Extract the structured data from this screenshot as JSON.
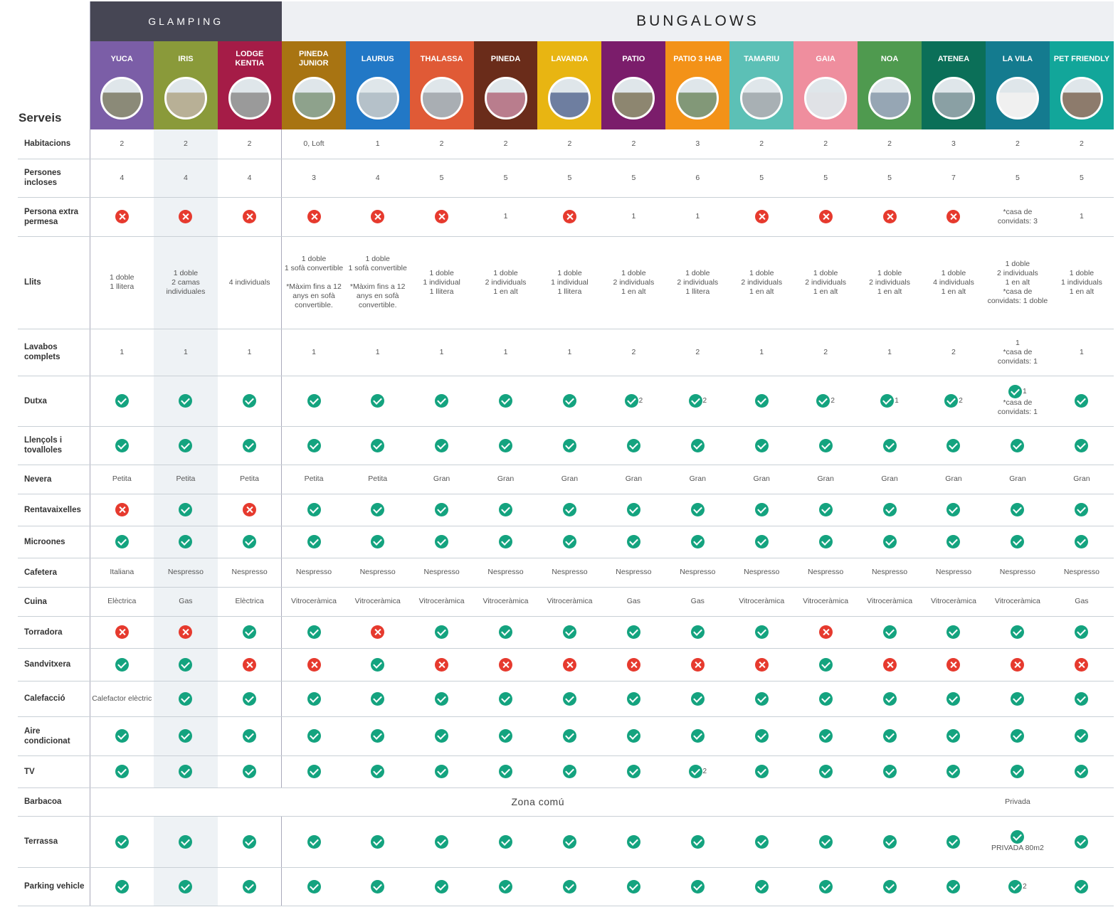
{
  "sections": {
    "glamping": "GLAMPING",
    "bungalows": "BUNGALOWS"
  },
  "corner_label": "Serveis",
  "units": [
    {
      "name": "YUCA",
      "color": "#7b5ea7",
      "photo": "#8b8a78"
    },
    {
      "name": "IRIS",
      "color": "#8a9a3a",
      "photo": "#b8b096"
    },
    {
      "name": "LODGE KENTIA",
      "color": "#a51c47",
      "photo": "#9a9a9a"
    },
    {
      "name": "PINEDA JUNIOR",
      "color": "#a87412",
      "photo": "#8ea28c"
    },
    {
      "name": "LAURUS",
      "color": "#2278c6",
      "photo": "#b5c1c9"
    },
    {
      "name": "THALASSA",
      "color": "#e05a36",
      "photo": "#a9aeb3"
    },
    {
      "name": "PINEDA",
      "color": "#6a2c1a",
      "photo": "#b97d8d"
    },
    {
      "name": "LAVANDA",
      "color": "#e8b512",
      "photo": "#6e7ea0"
    },
    {
      "name": "PATIO",
      "color": "#7b1d6b",
      "photo": "#8d8670"
    },
    {
      "name": "PATIO 3 HAB",
      "color": "#f39218",
      "photo": "#829878"
    },
    {
      "name": "TAMARIU",
      "color": "#5cc0b6",
      "photo": "#a8b0b4"
    },
    {
      "name": "GAIA",
      "color": "#ef8e9e",
      "photo": "#e0e2e6"
    },
    {
      "name": "NOA",
      "color": "#4f9a4f",
      "photo": "#96a6b4"
    },
    {
      "name": "ATENEA",
      "color": "#0b6f58",
      "photo": "#8aa0a4"
    },
    {
      "name": "LA VILA",
      "color": "#147b8f",
      "photo": "#f0f0f0"
    },
    {
      "name": "PET FRIENDLY",
      "color": "#12a69a",
      "photo": "#8d7b6c"
    }
  ],
  "rows": [
    {
      "label": "Habitacions",
      "h": 41,
      "cells": [
        "2",
        "2",
        "2",
        "0, Loft",
        "1",
        "2",
        "2",
        "2",
        "2",
        "3",
        "2",
        "2",
        "2",
        "3",
        "2",
        "2"
      ]
    },
    {
      "label": "Persones incloses",
      "h": 54,
      "cells": [
        "4",
        "4",
        "4",
        "3",
        "4",
        "5",
        "5",
        "5",
        "5",
        "6",
        "5",
        "5",
        "5",
        "7",
        "5",
        "5"
      ]
    },
    {
      "label": "Persona extra permesa",
      "h": 55,
      "cells": [
        "x",
        "x",
        "x",
        "x",
        "x",
        "x",
        "1",
        "x",
        "1",
        "1",
        "x",
        "x",
        "x",
        "x",
        "*casa de convidats: 3",
        "1"
      ]
    },
    {
      "label": "Llits",
      "h": 130,
      "cells": [
        "1 doble\n1 llitera",
        "1 doble\n2 camas individuales",
        "4 individuals",
        "1 doble\n1 sofà convertible\n\n*Màxim fins a 12 anys en sofà convertible.",
        "1 doble\n1 sofà convertible\n\n*Màxim fins a 12 anys en sofà convertible.",
        "1 doble\n1 individual\n1 llitera",
        "1 doble\n2 individuals\n1 en alt",
        "1 doble\n1 individual\n1 llitera",
        "1 doble\n2 individuals\n1 en alt",
        "1 doble\n2 individuals\n1 llitera",
        "1 doble\n2 individuals\n1 en alt",
        "1 doble\n2 individuals\n1 en alt",
        "1 doble\n2 individuals\n1 en alt",
        "1 doble\n4 individuals\n1 en alt",
        "1 doble\n2 individuals\n1 en alt\n*casa de convidats: 1 doble",
        "1 doble\n1 individuals\n1 en alt"
      ]
    },
    {
      "label": "Lavabos complets",
      "h": 66,
      "cells": [
        "1",
        "1",
        "1",
        "1",
        "1",
        "1",
        "1",
        "1",
        "2",
        "2",
        "1",
        "2",
        "1",
        "2",
        "1\n*casa de convidats: 1",
        "1"
      ]
    },
    {
      "label": "Dutxa",
      "h": 71,
      "cells": [
        "v",
        "v",
        "v",
        "v",
        "v",
        "v",
        "v",
        "v",
        "v|2",
        "v|2",
        "v",
        "v|2",
        "v|1",
        "v|2",
        "v|1\n*casa de convidats: 1",
        "v"
      ]
    },
    {
      "label": "Llençols i tovalloles",
      "h": 54,
      "cells": [
        "v",
        "v",
        "v",
        "v",
        "v",
        "v",
        "v",
        "v",
        "v",
        "v",
        "v",
        "v",
        "v",
        "v",
        "v",
        "v"
      ]
    },
    {
      "label": "Nevera",
      "h": 41,
      "cells": [
        "Petita",
        "Petita",
        "Petita",
        "Petita",
        "Petita",
        "Gran",
        "Gran",
        "Gran",
        "Gran",
        "Gran",
        "Gran",
        "Gran",
        "Gran",
        "Gran",
        "Gran",
        "Gran"
      ]
    },
    {
      "label": "Rentavaixelles",
      "h": 45,
      "cells": [
        "x",
        "v",
        "x",
        "v",
        "v",
        "v",
        "v",
        "v",
        "v",
        "v",
        "v",
        "v",
        "v",
        "v",
        "v",
        "v"
      ]
    },
    {
      "label": "Microones",
      "h": 45,
      "cells": [
        "v",
        "v",
        "v",
        "v",
        "v",
        "v",
        "v",
        "v",
        "v",
        "v",
        "v",
        "v",
        "v",
        "v",
        "v",
        "v"
      ]
    },
    {
      "label": "Cafetera",
      "h": 41,
      "cells": [
        "Italiana",
        "Nespresso",
        "Nespresso",
        "Nespresso",
        "Nespresso",
        "Nespresso",
        "Nespresso",
        "Nespresso",
        "Nespresso",
        "Nespresso",
        "Nespresso",
        "Nespresso",
        "Nespresso",
        "Nespresso",
        "Nespresso",
        "Nespresso"
      ]
    },
    {
      "label": "Cuina",
      "h": 41,
      "cells": [
        "Elèctrica",
        "Gas",
        "Elèctrica",
        "Vitroceràmica",
        "Vitroceràmica",
        "Vitroceràmica",
        "Vitroceràmica",
        "Vitroceràmica",
        "Gas",
        "Gas",
        "Vitroceràmica",
        "Vitroceràmica",
        "Vitroceràmica",
        "Vitroceràmica",
        "Vitroceràmica",
        "Gas"
      ]
    },
    {
      "label": "Torradora",
      "h": 45,
      "cells": [
        "x",
        "x",
        "v",
        "v",
        "x",
        "v",
        "v",
        "v",
        "v",
        "v",
        "v",
        "x",
        "v",
        "v",
        "v",
        "v"
      ]
    },
    {
      "label": "Sandvitxera",
      "h": 46,
      "cells": [
        "v",
        "v",
        "x",
        "x",
        "v",
        "x",
        "x",
        "x",
        "x",
        "x",
        "x",
        "v",
        "x",
        "x",
        "x",
        "x"
      ]
    },
    {
      "label": "Calefacció",
      "h": 50,
      "cells": [
        "Calefactor elèctric",
        "v",
        "v",
        "v",
        "v",
        "v",
        "v",
        "v",
        "v",
        "v",
        "v",
        "v",
        "v",
        "v",
        "v",
        "v"
      ]
    },
    {
      "label": "Aire condicionat",
      "h": 55,
      "cells": [
        "v",
        "v",
        "v",
        "v",
        "v",
        "v",
        "v",
        "v",
        "v",
        "v",
        "v",
        "v",
        "v",
        "v",
        "v",
        "v"
      ]
    },
    {
      "label": "TV",
      "h": 45,
      "cells": [
        "v",
        "v",
        "v",
        "v",
        "v",
        "v",
        "v",
        "v",
        "v",
        "v|2",
        "v",
        "v",
        "v",
        "v",
        "v",
        "v"
      ]
    },
    {
      "label": "Barbacoa",
      "h": 40,
      "shared": "Zona comú",
      "private_label": "Privada"
    },
    {
      "label": "Terrassa",
      "h": 72,
      "cells": [
        "v",
        "v",
        "v",
        "v",
        "v",
        "v",
        "v",
        "v",
        "v",
        "v",
        "v",
        "v",
        "v",
        "v",
        "v\nPRIVADA 80m2",
        "v"
      ]
    },
    {
      "label": "Parking vehicle",
      "h": 54,
      "cells": [
        "v",
        "v",
        "v",
        "v",
        "v",
        "v",
        "v",
        "v",
        "v",
        "v",
        "v",
        "v",
        "v",
        "v",
        "v|2",
        "v"
      ]
    }
  ]
}
